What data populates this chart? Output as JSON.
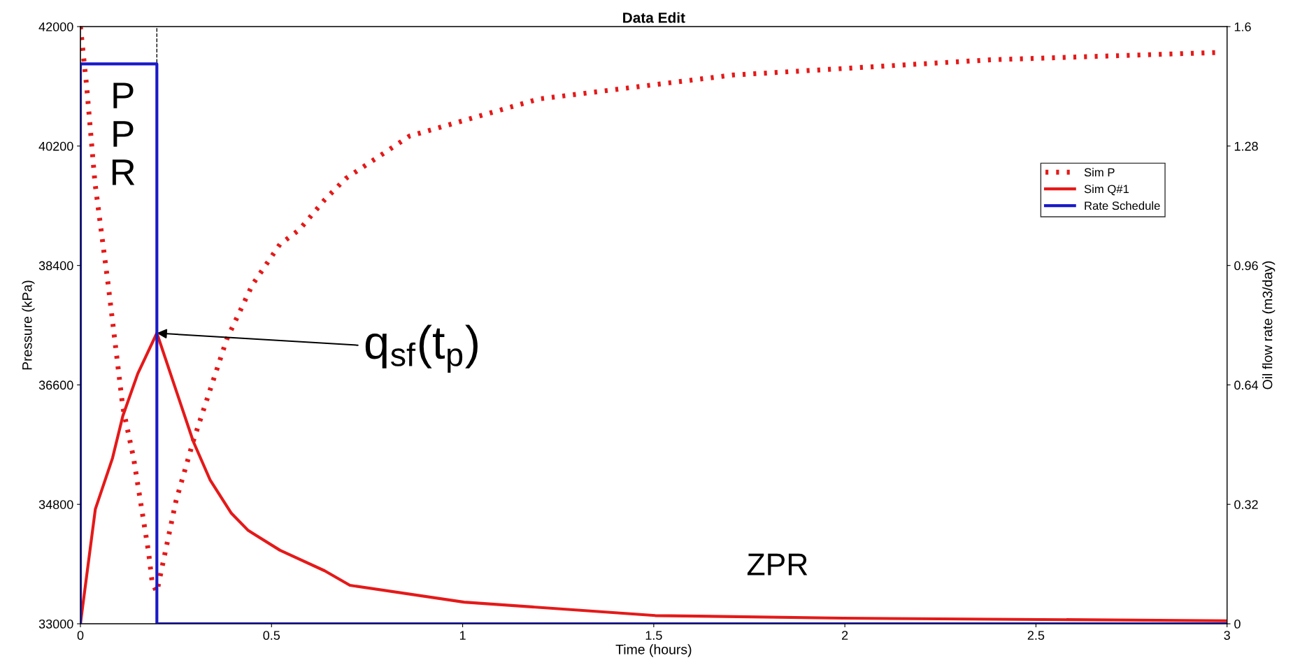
{
  "chart_data": {
    "type": "line",
    "title": "Data Edit",
    "xlabel": "Time (hours)",
    "ylabel": "Pressure (kPa)",
    "y2label": "Oil flow rate (m3/day)",
    "xlim": [
      0,
      3
    ],
    "xticks": [
      0,
      0.5,
      1,
      1.5,
      2,
      2.5,
      3
    ],
    "ylim": [
      33000,
      42000
    ],
    "yticks": [
      33000,
      34800,
      36600,
      38400,
      40200,
      42000
    ],
    "y2lim": [
      0,
      1.6
    ],
    "y2ticks": [
      0,
      0.32,
      0.64,
      0.96,
      1.28,
      1.6
    ],
    "grid": false,
    "legend": "top right",
    "series": [
      {
        "name": "Sim P",
        "line_style": "dotted",
        "color": "#e51919",
        "x": [
          0,
          0.016,
          0.038,
          0.072,
          0.111,
          0.139,
          0.178,
          0.188,
          0.2,
          0.25,
          0.295,
          0.383,
          0.45,
          0.522,
          0.573,
          0.639,
          0.694,
          0.861,
          1.2,
          1.707,
          2.383,
          2.976
        ],
        "values": [
          42000,
          41120,
          39650,
          38140,
          36260,
          35500,
          34090,
          33610,
          33480,
          34850,
          35750,
          37290,
          38110,
          38720,
          38940,
          39390,
          39710,
          40350,
          40910,
          41270,
          41500,
          41610
        ]
      },
      {
        "name": "Sim Q#1",
        "line_style": "solid",
        "axis": "y2",
        "color": "#e51919",
        "x": [
          0,
          0.039,
          0.084,
          0.111,
          0.15,
          0.2,
          0.295,
          0.339,
          0.395,
          0.439,
          0.522,
          0.639,
          0.705,
          1.004,
          1.504,
          1.995,
          3
        ],
        "values": [
          0,
          0.307,
          0.444,
          0.557,
          0.67,
          0.779,
          0.489,
          0.386,
          0.296,
          0.25,
          0.197,
          0.142,
          0.103,
          0.058,
          0.022,
          0.015,
          0.008
        ]
      },
      {
        "name": "Rate Schedule",
        "line_style": "solid",
        "axis": "y2",
        "color": "#1a1ac8",
        "x": [
          0,
          0,
          0.2,
          0.2,
          3
        ],
        "values": [
          0,
          1.5,
          1.5,
          0,
          0
        ]
      }
    ],
    "ref_lines": [
      {
        "axis": "x",
        "value": 0.2,
        "color": "#000000",
        "line_style": "dashed"
      }
    ],
    "annotations": [
      "P\nP\nR",
      {
        "text": "q$_{sf}$(t$_{p}$)",
        "x": 0.2,
        "y": 37380
      },
      "ZPR"
    ]
  }
}
